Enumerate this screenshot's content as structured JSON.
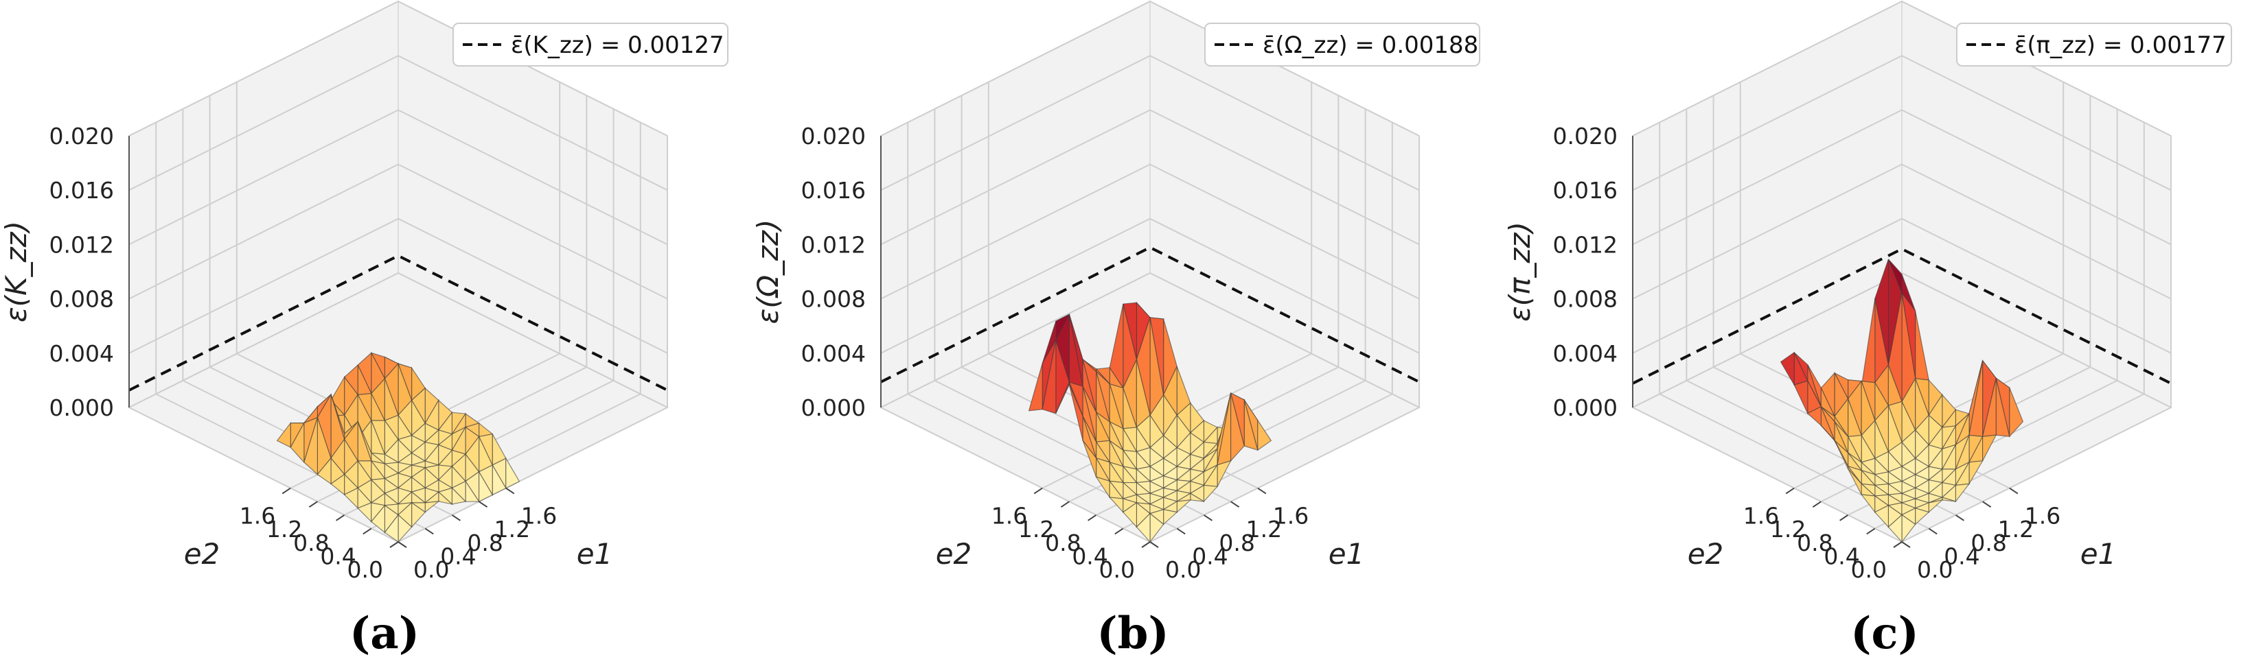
{
  "chart_data": [
    {
      "type": "surface3d",
      "panel": "(a)",
      "zlabel": "ε(K_zz)",
      "xlabel": "e1",
      "ylabel": "e2",
      "x_ticks": [
        "0.0",
        "0.4",
        "0.8",
        "1.2",
        "1.6"
      ],
      "y_ticks": [
        "0.0",
        "0.4",
        "0.8",
        "1.2",
        "1.6"
      ],
      "z_ticks": [
        "0.000",
        "0.004",
        "0.008",
        "0.012",
        "0.016",
        "0.020"
      ],
      "zlim": [
        0,
        0.02
      ],
      "legend": "ε̄(K_zz) = 0.00127",
      "mean": 0.00127,
      "grid_x": [
        0,
        0.2,
        0.4,
        0.6,
        0.8,
        1.0,
        1.2,
        1.4,
        1.6,
        1.8
      ],
      "grid_y": [
        0,
        0.2,
        0.4,
        0.6,
        0.8,
        1.0,
        1.2,
        1.4,
        1.6,
        1.8
      ],
      "z": [
        [
          0.0,
          0.0002,
          0.0005,
          0.001,
          0.0015,
          0.0018,
          0.002,
          0.0024,
          0.003,
          0.003
        ],
        [
          0.0006,
          0.001,
          0.0012,
          0.0009,
          0.0015,
          0.002,
          0.0027,
          0.0052,
          0.0043,
          0.0038
        ],
        [
          0.0012,
          0.0014,
          0.0008,
          0.0011,
          0.0016,
          0.0025,
          0.0036,
          0.0064,
          0.005,
          0.003
        ],
        [
          0.0015,
          0.0009,
          0.0012,
          0.001,
          0.0012,
          0.002,
          0.0044,
          0.003,
          0.0038,
          0.0025
        ],
        [
          0.0008,
          0.0012,
          0.001,
          0.0013,
          0.0011,
          0.0013,
          0.0016,
          0.0022,
          0.0034,
          0.004
        ],
        [
          0.0005,
          0.001,
          0.0011,
          0.0015,
          0.0012,
          0.0009,
          0.001,
          0.003,
          0.0044,
          0.0052
        ],
        [
          0.0,
          0.001,
          0.0016,
          0.0012,
          0.001,
          0.0011,
          0.0016,
          0.0025,
          0.004,
          0.0056
        ],
        [
          0.0,
          0.0012,
          0.002,
          0.0018,
          0.0017,
          0.0014,
          0.0014,
          0.0024,
          0.0046,
          0.006
        ],
        [
          0.0,
          0.0012,
          0.0028,
          0.003,
          0.002,
          0.0018,
          0.0018,
          0.003,
          0.0052,
          0.0052
        ],
        [
          0.0,
          0.0012,
          0.0025,
          0.0028,
          0.003,
          0.0026,
          0.003,
          0.0034,
          0.0044,
          0.004
        ]
      ]
    },
    {
      "type": "surface3d",
      "panel": "(b)",
      "zlabel": "ε(Ω_zz)",
      "xlabel": "e1",
      "ylabel": "e2",
      "x_ticks": [
        "0.0",
        "0.4",
        "0.8",
        "1.2",
        "1.6"
      ],
      "y_ticks": [
        "0.0",
        "0.4",
        "0.8",
        "1.2",
        "1.6"
      ],
      "z_ticks": [
        "0.000",
        "0.004",
        "0.008",
        "0.012",
        "0.016",
        "0.020"
      ],
      "zlim": [
        0,
        0.02
      ],
      "legend": "ε̄(Ω_zz) = 0.00188",
      "mean": 0.00188,
      "grid_x": [
        0,
        0.2,
        0.4,
        0.6,
        0.8,
        1.0,
        1.2,
        1.4,
        1.6,
        1.8
      ],
      "grid_y": [
        0,
        0.2,
        0.4,
        0.6,
        0.8,
        1.0,
        1.2,
        1.4,
        1.6,
        1.8
      ],
      "z": [
        [
          0.0,
          0.0006,
          0.0012,
          0.0018,
          0.0028,
          0.005,
          0.0086,
          0.006,
          0.0058,
          0.0052
        ],
        [
          0.0008,
          0.0011,
          0.0014,
          0.0012,
          0.002,
          0.0032,
          0.0058,
          0.0078,
          0.0104,
          0.0082
        ],
        [
          0.0012,
          0.0009,
          0.0008,
          0.001,
          0.0014,
          0.0024,
          0.0034,
          0.007,
          0.0118,
          0.0108
        ],
        [
          0.0016,
          0.001,
          0.0008,
          0.0006,
          0.0009,
          0.0016,
          0.003,
          0.0046,
          0.008,
          0.009
        ],
        [
          0.001,
          0.0011,
          0.0008,
          0.0005,
          0.0005,
          0.0009,
          0.0018,
          0.0034,
          0.0066,
          0.007
        ],
        [
          0.0016,
          0.0012,
          0.001,
          0.0006,
          0.0004,
          0.0006,
          0.0012,
          0.0024,
          0.0052,
          0.0058
        ],
        [
          0.003,
          0.0022,
          0.0012,
          0.0009,
          0.0006,
          0.0007,
          0.001,
          0.002,
          0.0044,
          0.0054
        ],
        [
          0.0036,
          0.007,
          0.0024,
          0.0012,
          0.001,
          0.001,
          0.0014,
          0.0024,
          0.006,
          0.0096
        ],
        [
          0.0028,
          0.006,
          0.005,
          0.0018,
          0.0014,
          0.0016,
          0.0024,
          0.0034,
          0.0086,
          0.0092
        ],
        [
          0.003,
          0.004,
          0.003,
          0.0024,
          0.002,
          0.002,
          0.0028,
          0.005,
          0.008,
          0.007
        ]
      ]
    },
    {
      "type": "surface3d",
      "panel": "(c)",
      "zlabel": "ε(π_zz)",
      "xlabel": "e1",
      "ylabel": "e2",
      "x_ticks": [
        "0.0",
        "0.4",
        "0.8",
        "1.2",
        "1.6"
      ],
      "y_ticks": [
        "0.0",
        "0.4",
        "0.8",
        "1.2",
        "1.6"
      ],
      "z_ticks": [
        "0.000",
        "0.004",
        "0.008",
        "0.012",
        "0.016",
        "0.020"
      ],
      "zlim": [
        0,
        0.02
      ],
      "legend": "ε̄(π_zz) = 0.00177",
      "mean": 0.00177,
      "grid_x": [
        0,
        0.2,
        0.4,
        0.6,
        0.8,
        1.0,
        1.2,
        1.4,
        1.6,
        1.8
      ],
      "grid_y": [
        0,
        0.2,
        0.4,
        0.6,
        0.8,
        1.0,
        1.2,
        1.4,
        1.6,
        1.8
      ],
      "z": [
        [
          0.0,
          0.0006,
          0.0012,
          0.002,
          0.0034,
          0.005,
          0.0056,
          0.006,
          0.0076,
          0.0088
        ],
        [
          0.0008,
          0.001,
          0.0012,
          0.0014,
          0.0018,
          0.0026,
          0.004,
          0.006,
          0.0074,
          0.009
        ],
        [
          0.0012,
          0.001,
          0.0009,
          0.001,
          0.0012,
          0.0018,
          0.0026,
          0.0044,
          0.005,
          0.0076
        ],
        [
          0.0016,
          0.0009,
          0.0007,
          0.0006,
          0.0008,
          0.001,
          0.0014,
          0.0028,
          0.0038,
          0.0054
        ],
        [
          0.001,
          0.0008,
          0.0006,
          0.0005,
          0.0005,
          0.0007,
          0.0012,
          0.0024,
          0.0046,
          0.006
        ],
        [
          0.0018,
          0.0012,
          0.0009,
          0.0006,
          0.0005,
          0.0006,
          0.0012,
          0.003,
          0.0054,
          0.005
        ],
        [
          0.003,
          0.0024,
          0.0014,
          0.0009,
          0.0006,
          0.0007,
          0.0014,
          0.0036,
          0.0048,
          0.004
        ],
        [
          0.0044,
          0.0038,
          0.0034,
          0.0022,
          0.0014,
          0.0012,
          0.0018,
          0.0034,
          0.0056,
          0.01
        ],
        [
          0.0038,
          0.0076,
          0.0084,
          0.004,
          0.0026,
          0.002,
          0.0024,
          0.0046,
          0.0104,
          0.0124
        ],
        [
          0.0044,
          0.0064,
          0.0054,
          0.0042,
          0.003,
          0.0028,
          0.0034,
          0.004,
          0.0086,
          0.0108
        ]
      ]
    }
  ]
}
